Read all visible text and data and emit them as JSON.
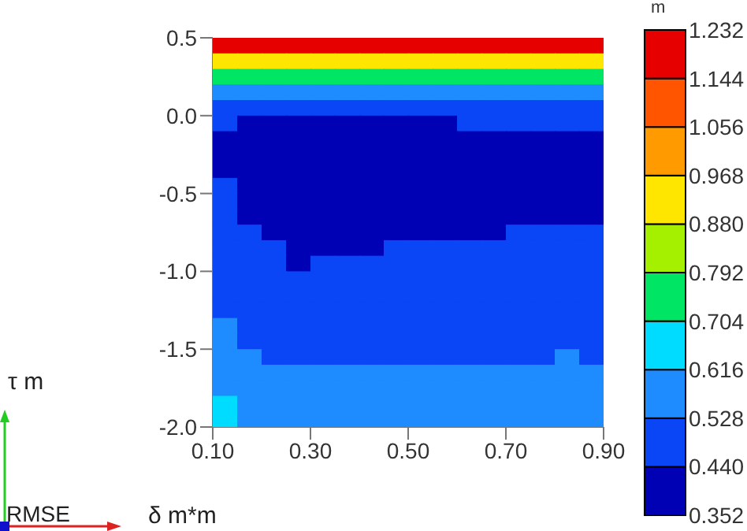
{
  "chart_data": {
    "type": "heatmap",
    "xlabel": "δ m*m",
    "ylabel": "τ m",
    "clabel": "m",
    "annotations": [
      "RMSE"
    ],
    "xlim": [
      0.1,
      0.9
    ],
    "ylim": [
      -2.0,
      0.5
    ],
    "xticks": [
      {
        "value": 0.1,
        "label": "0.10"
      },
      {
        "value": 0.3,
        "label": "0.30"
      },
      {
        "value": 0.5,
        "label": "0.50"
      },
      {
        "value": 0.7,
        "label": "0.70"
      },
      {
        "value": 0.9,
        "label": "0.90"
      }
    ],
    "yticks": [
      0.5,
      {
        "value": 0,
        "label": "0.0"
      },
      -0.5,
      {
        "value": -1,
        "label": "-1.0"
      },
      -1.5,
      {
        "value": -2,
        "label": "-2.0"
      }
    ],
    "clim": [
      0.352,
      1.232
    ],
    "cticks": [
      0.352,
      {
        "value": 0.44,
        "label": "0.440"
      },
      0.528,
      0.616,
      0.704,
      0.792,
      {
        "value": 0.88,
        "label": "0.880"
      },
      0.968,
      1.056,
      1.144,
      1.232
    ],
    "grid": false,
    "cells": [
      [
        1.188,
        1.188,
        1.188,
        1.188,
        1.188,
        1.188,
        1.188,
        1.188,
        1.188,
        1.188,
        1.188,
        1.188,
        1.188,
        1.188,
        1.188,
        1.188
      ],
      [
        0.924,
        0.924,
        0.924,
        0.924,
        0.924,
        0.924,
        0.924,
        0.924,
        0.924,
        0.924,
        0.924,
        0.924,
        0.924,
        0.924,
        0.924,
        0.924
      ],
      [
        0.748,
        0.748,
        0.748,
        0.748,
        0.748,
        0.748,
        0.748,
        0.748,
        0.748,
        0.748,
        0.748,
        0.748,
        0.748,
        0.748,
        0.748,
        0.748
      ],
      [
        0.572,
        0.572,
        0.572,
        0.572,
        0.572,
        0.572,
        0.572,
        0.572,
        0.572,
        0.572,
        0.572,
        0.572,
        0.572,
        0.572,
        0.572,
        0.572
      ],
      [
        0.484,
        0.484,
        0.484,
        0.484,
        0.484,
        0.484,
        0.484,
        0.484,
        0.484,
        0.484,
        0.484,
        0.484,
        0.484,
        0.484,
        0.484,
        0.484
      ],
      [
        0.484,
        0.396,
        0.396,
        0.396,
        0.396,
        0.396,
        0.396,
        0.396,
        0.396,
        0.396,
        0.484,
        0.484,
        0.484,
        0.484,
        0.484,
        0.484
      ],
      [
        0.396,
        0.396,
        0.396,
        0.396,
        0.396,
        0.396,
        0.396,
        0.396,
        0.396,
        0.396,
        0.396,
        0.396,
        0.396,
        0.396,
        0.396,
        0.396
      ],
      [
        0.396,
        0.396,
        0.396,
        0.396,
        0.396,
        0.396,
        0.396,
        0.396,
        0.396,
        0.396,
        0.396,
        0.396,
        0.396,
        0.396,
        0.396,
        0.396
      ],
      [
        0.396,
        0.396,
        0.396,
        0.396,
        0.396,
        0.396,
        0.396,
        0.396,
        0.396,
        0.396,
        0.396,
        0.396,
        0.396,
        0.396,
        0.396,
        0.396
      ],
      [
        0.484,
        0.396,
        0.396,
        0.396,
        0.396,
        0.396,
        0.396,
        0.396,
        0.396,
        0.396,
        0.396,
        0.396,
        0.396,
        0.396,
        0.396,
        0.396
      ],
      [
        0.484,
        0.396,
        0.396,
        0.396,
        0.396,
        0.396,
        0.396,
        0.396,
        0.396,
        0.396,
        0.396,
        0.396,
        0.396,
        0.396,
        0.396,
        0.396
      ],
      [
        0.484,
        0.396,
        0.396,
        0.396,
        0.396,
        0.396,
        0.396,
        0.396,
        0.396,
        0.396,
        0.396,
        0.396,
        0.396,
        0.396,
        0.396,
        0.396
      ],
      [
        0.484,
        0.484,
        0.396,
        0.396,
        0.396,
        0.396,
        0.396,
        0.396,
        0.396,
        0.396,
        0.396,
        0.396,
        0.484,
        0.484,
        0.484,
        0.484
      ],
      [
        0.484,
        0.484,
        0.484,
        0.396,
        0.396,
        0.396,
        0.396,
        0.484,
        0.484,
        0.484,
        0.484,
        0.484,
        0.484,
        0.484,
        0.484,
        0.484
      ],
      [
        0.484,
        0.484,
        0.484,
        0.396,
        0.484,
        0.484,
        0.484,
        0.484,
        0.484,
        0.484,
        0.484,
        0.484,
        0.484,
        0.484,
        0.484,
        0.484
      ],
      [
        0.484,
        0.484,
        0.484,
        0.484,
        0.484,
        0.484,
        0.484,
        0.484,
        0.484,
        0.484,
        0.484,
        0.484,
        0.484,
        0.484,
        0.484,
        0.484
      ],
      [
        0.484,
        0.484,
        0.484,
        0.484,
        0.484,
        0.484,
        0.484,
        0.484,
        0.484,
        0.484,
        0.484,
        0.484,
        0.484,
        0.484,
        0.484,
        0.484
      ],
      [
        0.484,
        0.484,
        0.484,
        0.484,
        0.484,
        0.484,
        0.484,
        0.484,
        0.484,
        0.484,
        0.484,
        0.484,
        0.484,
        0.484,
        0.484,
        0.484
      ],
      [
        0.572,
        0.484,
        0.484,
        0.484,
        0.484,
        0.484,
        0.484,
        0.484,
        0.484,
        0.484,
        0.484,
        0.484,
        0.484,
        0.484,
        0.484,
        0.484
      ],
      [
        0.572,
        0.484,
        0.484,
        0.484,
        0.484,
        0.484,
        0.484,
        0.484,
        0.484,
        0.484,
        0.484,
        0.484,
        0.484,
        0.484,
        0.484,
        0.484
      ],
      [
        0.572,
        0.572,
        0.484,
        0.484,
        0.484,
        0.484,
        0.484,
        0.484,
        0.484,
        0.484,
        0.484,
        0.484,
        0.484,
        0.484,
        0.572,
        0.484
      ],
      [
        0.572,
        0.572,
        0.572,
        0.572,
        0.572,
        0.572,
        0.572,
        0.572,
        0.572,
        0.572,
        0.572,
        0.572,
        0.572,
        0.572,
        0.572,
        0.572
      ],
      [
        0.572,
        0.572,
        0.572,
        0.572,
        0.572,
        0.572,
        0.572,
        0.572,
        0.572,
        0.572,
        0.572,
        0.572,
        0.572,
        0.572,
        0.572,
        0.572
      ],
      [
        0.66,
        0.572,
        0.572,
        0.572,
        0.572,
        0.572,
        0.572,
        0.572,
        0.572,
        0.572,
        0.572,
        0.572,
        0.572,
        0.572,
        0.572,
        0.572
      ],
      [
        0.66,
        0.572,
        0.572,
        0.572,
        0.572,
        0.572,
        0.572,
        0.572,
        0.572,
        0.572,
        0.572,
        0.572,
        0.572,
        0.572,
        0.572,
        0.572
      ]
    ]
  }
}
